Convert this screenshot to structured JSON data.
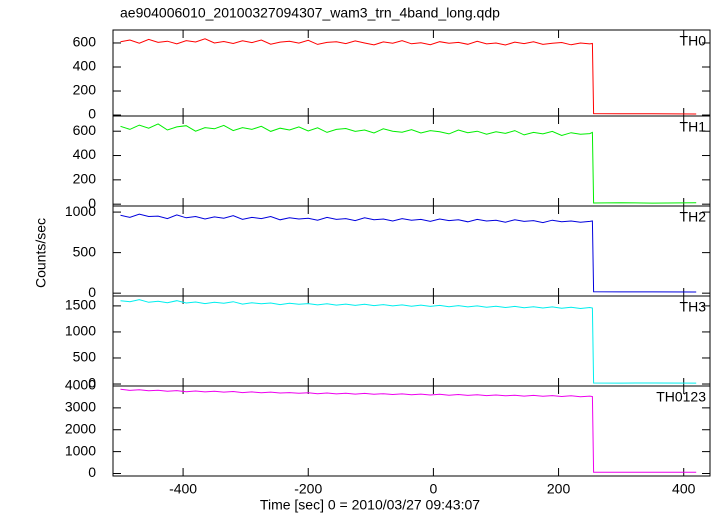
{
  "title": "ae904006010_20100327094307_wam3_trn_4band_long.qdp",
  "xlabel": "Time [sec] 0 = 2010/03/27 09:43:07",
  "ylabel": "Counts/sec",
  "x": [
    -500,
    -485,
    -470,
    -455,
    -440,
    -425,
    -410,
    -395,
    -380,
    -365,
    -350,
    -335,
    -320,
    -305,
    -290,
    -275,
    -260,
    -245,
    -230,
    -215,
    -200,
    -185,
    -170,
    -155,
    -140,
    -125,
    -110,
    -95,
    -80,
    -65,
    -50,
    -35,
    -20,
    -5,
    10,
    25,
    40,
    55,
    70,
    85,
    100,
    115,
    130,
    145,
    160,
    175,
    190,
    205,
    220,
    235,
    250,
    254,
    256,
    300,
    350,
    420
  ],
  "xlim": [
    -512,
    442
  ],
  "xticks": [
    -400,
    -200,
    0,
    200,
    400
  ],
  "chart_data": [
    {
      "type": "line",
      "ylim": [
        -8,
        708
      ],
      "yticks": [
        0,
        200,
        400,
        600
      ],
      "series": [
        {
          "name": "TH0",
          "color": "#ff0000",
          "values": [
            610,
            625,
            598,
            630,
            605,
            615,
            592,
            620,
            608,
            635,
            600,
            612,
            596,
            618,
            603,
            625,
            590,
            607,
            614,
            599,
            622,
            588,
            605,
            611,
            595,
            617,
            600,
            584,
            609,
            598,
            620,
            593,
            602,
            586,
            611,
            597,
            605,
            589,
            614,
            592,
            600,
            583,
            607,
            595,
            610,
            588,
            598,
            604,
            585,
            600,
            592,
            596,
            12,
            10,
            11,
            9
          ]
        }
      ]
    },
    {
      "type": "line",
      "ylim": [
        -15,
        725
      ],
      "yticks": [
        0,
        200,
        400,
        600
      ],
      "series": [
        {
          "name": "TH1",
          "color": "#00ee00",
          "values": [
            640,
            615,
            650,
            625,
            660,
            610,
            635,
            645,
            600,
            630,
            620,
            648,
            605,
            630,
            615,
            640,
            598,
            625,
            610,
            635,
            602,
            628,
            590,
            615,
            622,
            598,
            610,
            585,
            620,
            600,
            592,
            612,
            585,
            605,
            595,
            578,
            610,
            588,
            600,
            575,
            595,
            582,
            605,
            570,
            590,
            578,
            598,
            565,
            588,
            575,
            580,
            590,
            10,
            12,
            9,
            11
          ]
        }
      ]
    },
    {
      "type": "line",
      "ylim": [
        -35,
        1075
      ],
      "yticks": [
        0,
        500,
        1000
      ],
      "series": [
        {
          "name": "TH2",
          "color": "#0000dd",
          "values": [
            960,
            935,
            975,
            945,
            950,
            920,
            965,
            930,
            945,
            915,
            940,
            925,
            955,
            910,
            935,
            920,
            945,
            905,
            930,
            915,
            925,
            900,
            935,
            910,
            920,
            895,
            930,
            905,
            915,
            890,
            920,
            900,
            910,
            885,
            915,
            895,
            905,
            880,
            910,
            890,
            900,
            875,
            905,
            885,
            895,
            870,
            900,
            880,
            890,
            875,
            885,
            890,
            18,
            15,
            16,
            14
          ]
        }
      ]
    },
    {
      "type": "line",
      "ylim": [
        -38,
        1690
      ],
      "yticks": [
        0,
        500,
        1000,
        1500
      ],
      "series": [
        {
          "name": "TH3",
          "color": "#00eeee",
          "values": [
            1600,
            1580,
            1620,
            1570,
            1590,
            1560,
            1600,
            1555,
            1575,
            1545,
            1570,
            1550,
            1580,
            1535,
            1560,
            1540,
            1555,
            1525,
            1550,
            1530,
            1545,
            1520,
            1540,
            1515,
            1535,
            1510,
            1530,
            1505,
            1525,
            1500,
            1520,
            1495,
            1515,
            1490,
            1510,
            1485,
            1505,
            1480,
            1500,
            1475,
            1495,
            1470,
            1490,
            1465,
            1485,
            1460,
            1480,
            1455,
            1475,
            1450,
            1470,
            1460,
            20,
            18,
            19,
            17
          ]
        }
      ]
    },
    {
      "type": "line",
      "ylim": [
        -115,
        4000
      ],
      "yticks": [
        0,
        1000,
        2000,
        3000,
        4000
      ],
      "series": [
        {
          "name": "TH0123",
          "color": "#ee00ee",
          "values": [
            3850,
            3800,
            3830,
            3780,
            3810,
            3760,
            3790,
            3740,
            3770,
            3730,
            3760,
            3720,
            3750,
            3700,
            3730,
            3690,
            3720,
            3680,
            3700,
            3670,
            3690,
            3650,
            3680,
            3640,
            3670,
            3630,
            3660,
            3620,
            3650,
            3610,
            3640,
            3600,
            3630,
            3590,
            3620,
            3580,
            3610,
            3570,
            3600,
            3560,
            3590,
            3550,
            3580,
            3540,
            3570,
            3530,
            3560,
            3520,
            3550,
            3510,
            3540,
            3520,
            60,
            55,
            58,
            52
          ]
        }
      ]
    }
  ]
}
